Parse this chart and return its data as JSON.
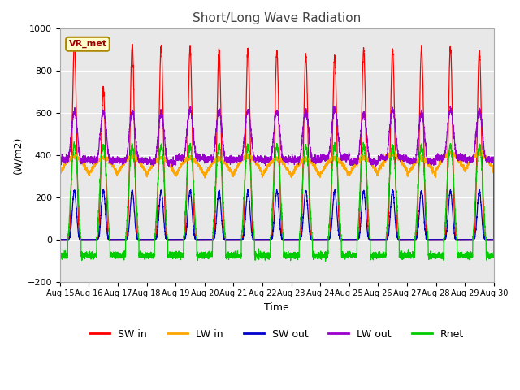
{
  "title": "Short/Long Wave Radiation",
  "xlabel": "Time",
  "ylabel": "(W/m2)",
  "ylim": [
    -200,
    1000
  ],
  "days": 15,
  "x_tick_labels": [
    "Aug 15",
    "Aug 16",
    "Aug 17",
    "Aug 18",
    "Aug 19",
    "Aug 20",
    "Aug 21",
    "Aug 22",
    "Aug 23",
    "Aug 24",
    "Aug 25",
    "Aug 26",
    "Aug 27",
    "Aug 28",
    "Aug 29",
    "Aug 30"
  ],
  "colors": {
    "SW_in": "#ff0000",
    "LW_in": "#ffa500",
    "SW_out": "#0000cd",
    "LW_out": "#9900cc",
    "Rnet": "#00cc00"
  },
  "legend_labels": [
    "SW in",
    "LW in",
    "SW out",
    "LW out",
    "Rnet"
  ],
  "annotation_text": "VR_met",
  "figure_bg": "#ffffff",
  "plot_bg": "#e8e8e8",
  "grid_color": "#ffffff",
  "title_fontsize": 11,
  "axis_fontsize": 9,
  "tick_fontsize": 7,
  "legend_fontsize": 9,
  "SW_in_peaks": [
    925,
    715,
    920,
    920,
    905,
    900,
    905,
    890,
    875,
    870,
    900,
    900,
    910,
    905,
    895
  ],
  "LW_out_base": 375,
  "LW_out_peak_add": 230,
  "LW_in_base": 310,
  "LW_in_day_add": 80,
  "SW_out_peak": 230,
  "Rnet_day_peak": 445,
  "Rnet_night": -75,
  "pts_per_day": 288
}
